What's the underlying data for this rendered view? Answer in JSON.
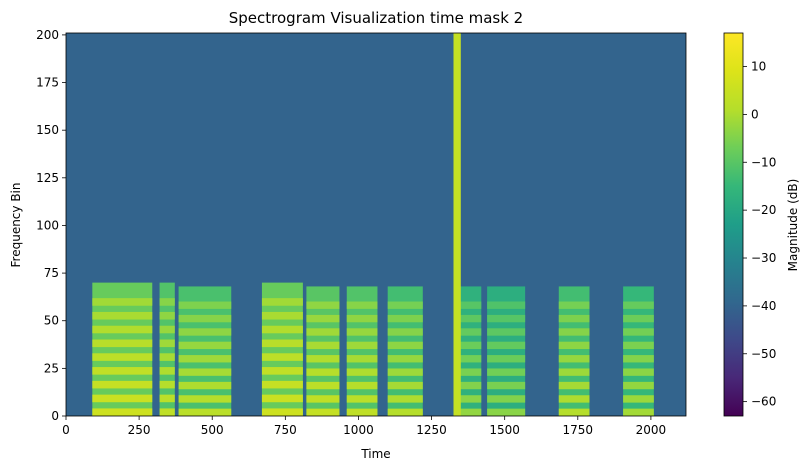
{
  "chart_data": {
    "type": "heatmap",
    "title": "Spectrogram Visualization time mask 2",
    "xlabel": "Time",
    "ylabel": "Frequency Bin",
    "xlim": [
      0,
      2120
    ],
    "ylim": [
      0,
      201
    ],
    "x_ticks": [
      0,
      250,
      500,
      750,
      1000,
      1250,
      1500,
      1750,
      2000
    ],
    "y_ticks": [
      0,
      25,
      50,
      75,
      100,
      125,
      150,
      175,
      200
    ],
    "colorbar": {
      "label": "Magnitude (dB)",
      "colormap": "viridis",
      "range": [
        -63,
        17
      ],
      "ticks": [
        10,
        0,
        -10,
        -20,
        -30,
        -40,
        -50,
        -60
      ],
      "tick_labels": [
        "10",
        "0",
        "−10",
        "−20",
        "−30",
        "−40",
        "−50",
        "−60"
      ]
    },
    "background_db": -40,
    "speech_segments": [
      {
        "start": 90,
        "end": 295,
        "max_freq": 70,
        "level_db": 6
      },
      {
        "start": 320,
        "end": 372,
        "max_freq": 70,
        "level_db": 3
      },
      {
        "start": 385,
        "end": 565,
        "max_freq": 68,
        "level_db": 2
      },
      {
        "start": 670,
        "end": 810,
        "max_freq": 70,
        "level_db": 6
      },
      {
        "start": 822,
        "end": 935,
        "max_freq": 68,
        "level_db": 4
      },
      {
        "start": 960,
        "end": 1065,
        "max_freq": 68,
        "level_db": 3
      },
      {
        "start": 1100,
        "end": 1220,
        "max_freq": 68,
        "level_db": 1
      },
      {
        "start": 1340,
        "end": 1420,
        "max_freq": 68,
        "level_db": -3
      },
      {
        "start": 1440,
        "end": 1570,
        "max_freq": 68,
        "level_db": -4
      },
      {
        "start": 1685,
        "end": 1790,
        "max_freq": 68,
        "level_db": 1
      },
      {
        "start": 1905,
        "end": 2010,
        "max_freq": 68,
        "level_db": -1
      }
    ],
    "time_mask": {
      "start": 1325,
      "end": 1350,
      "level_db": 4
    }
  }
}
